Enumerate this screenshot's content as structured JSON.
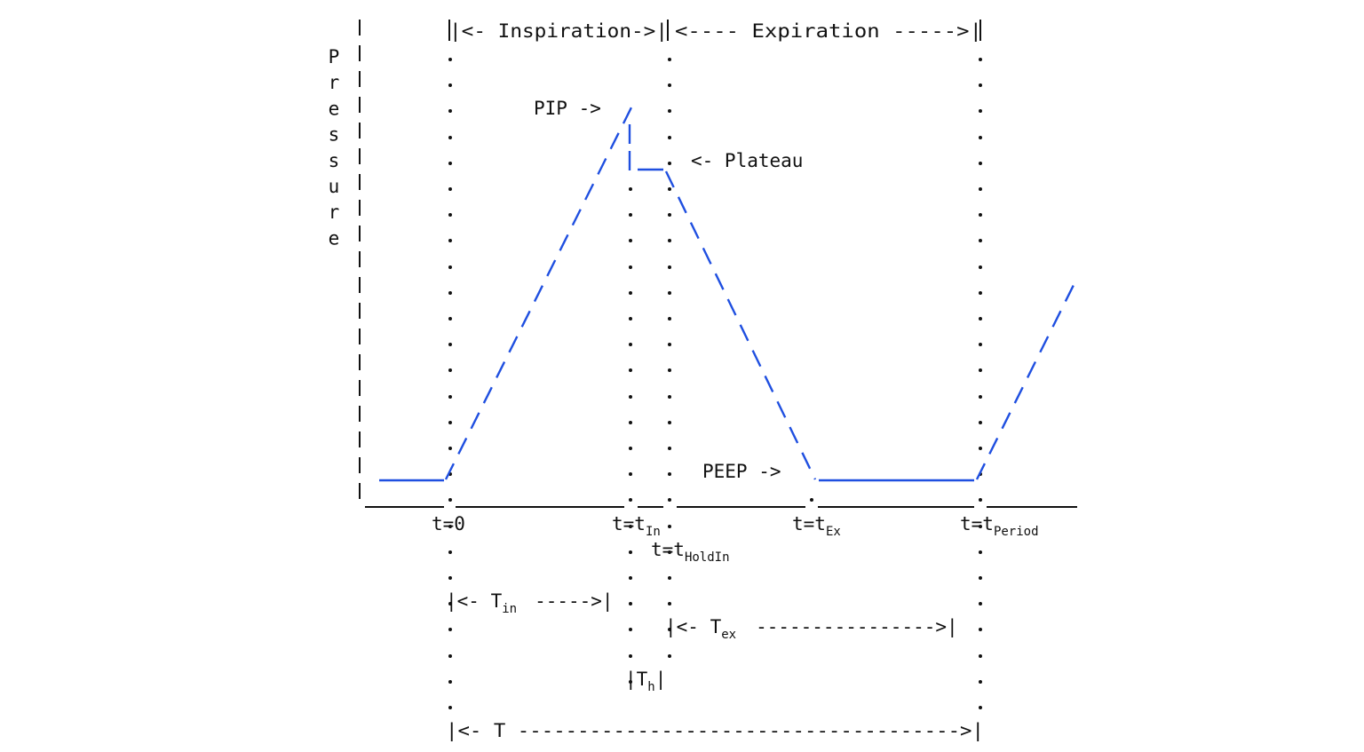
{
  "colors": {
    "curve": "#1f4fe0",
    "ink": "#111111",
    "background": "#ffffff"
  },
  "header": {
    "inspiration": "|<- Inspiration->|",
    "expiration": "<---- Expiration ----->|"
  },
  "y_axis_letters": [
    "P",
    "r",
    "e",
    "s",
    "s",
    "u",
    "r",
    "e"
  ],
  "annotations": {
    "pip": "PIP ->",
    "plateau": "<- Plateau",
    "peep": "PEEP ->"
  },
  "time_labels": {
    "t0": "t=0",
    "tin_base": "t=t",
    "tin_sub": "In",
    "thold_base": "t=t",
    "thold_sub": "HoldIn",
    "tex_base": "t=t",
    "tex_sub": "Ex",
    "tperiod_base": "t=t",
    "tperiod_sub": "Period"
  },
  "durations": {
    "tin_pre": "|<- T",
    "tin_sub": "in",
    "tin_post": "----->|",
    "tex_pre": "|<- T",
    "tex_sub": "ex",
    "tex_post": "---------------->|",
    "th_pre": "|T",
    "th_sub": "h",
    "th_post": "|",
    "t_total": "|<- T ------------------------------------->|"
  }
}
